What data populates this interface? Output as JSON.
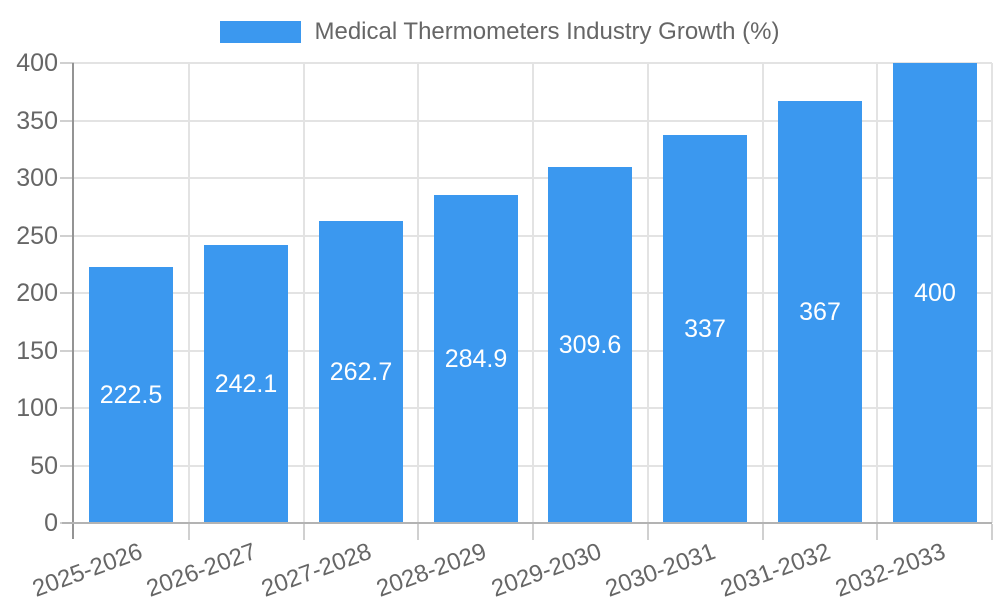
{
  "chart_data": {
    "type": "bar",
    "title": "Medical Thermometers Industry Growth (%)",
    "legend_label": "Medical Thermometers Industry Growth (%)",
    "legend_position": "top-center",
    "categories": [
      "2025-2026",
      "2026-2027",
      "2027-2028",
      "2028-2029",
      "2029-2030",
      "2030-2031",
      "2031-2032",
      "2032-2033"
    ],
    "values": [
      222.5,
      242.1,
      262.7,
      284.9,
      309.6,
      337,
      367,
      400
    ],
    "bar_value_labels": [
      "222.5",
      "242.1",
      "262.7",
      "284.9",
      "309.6",
      "337",
      "367",
      "400"
    ],
    "xlabel": "",
    "ylabel": "",
    "ylim": [
      0,
      400
    ],
    "yticks": [
      0,
      50,
      100,
      150,
      200,
      250,
      300,
      350,
      400
    ],
    "grid": true,
    "colors": {
      "bar": "#3B98EF",
      "bar_label_text": "#FFFFFF",
      "axis_text": "#666666",
      "grid_line": "#E3E3E3",
      "y_axis_line": "#949494",
      "x_axis_line": "#B3B3B3",
      "tick_mark": "#D0D0D0",
      "background": "#FFFFFF"
    }
  }
}
